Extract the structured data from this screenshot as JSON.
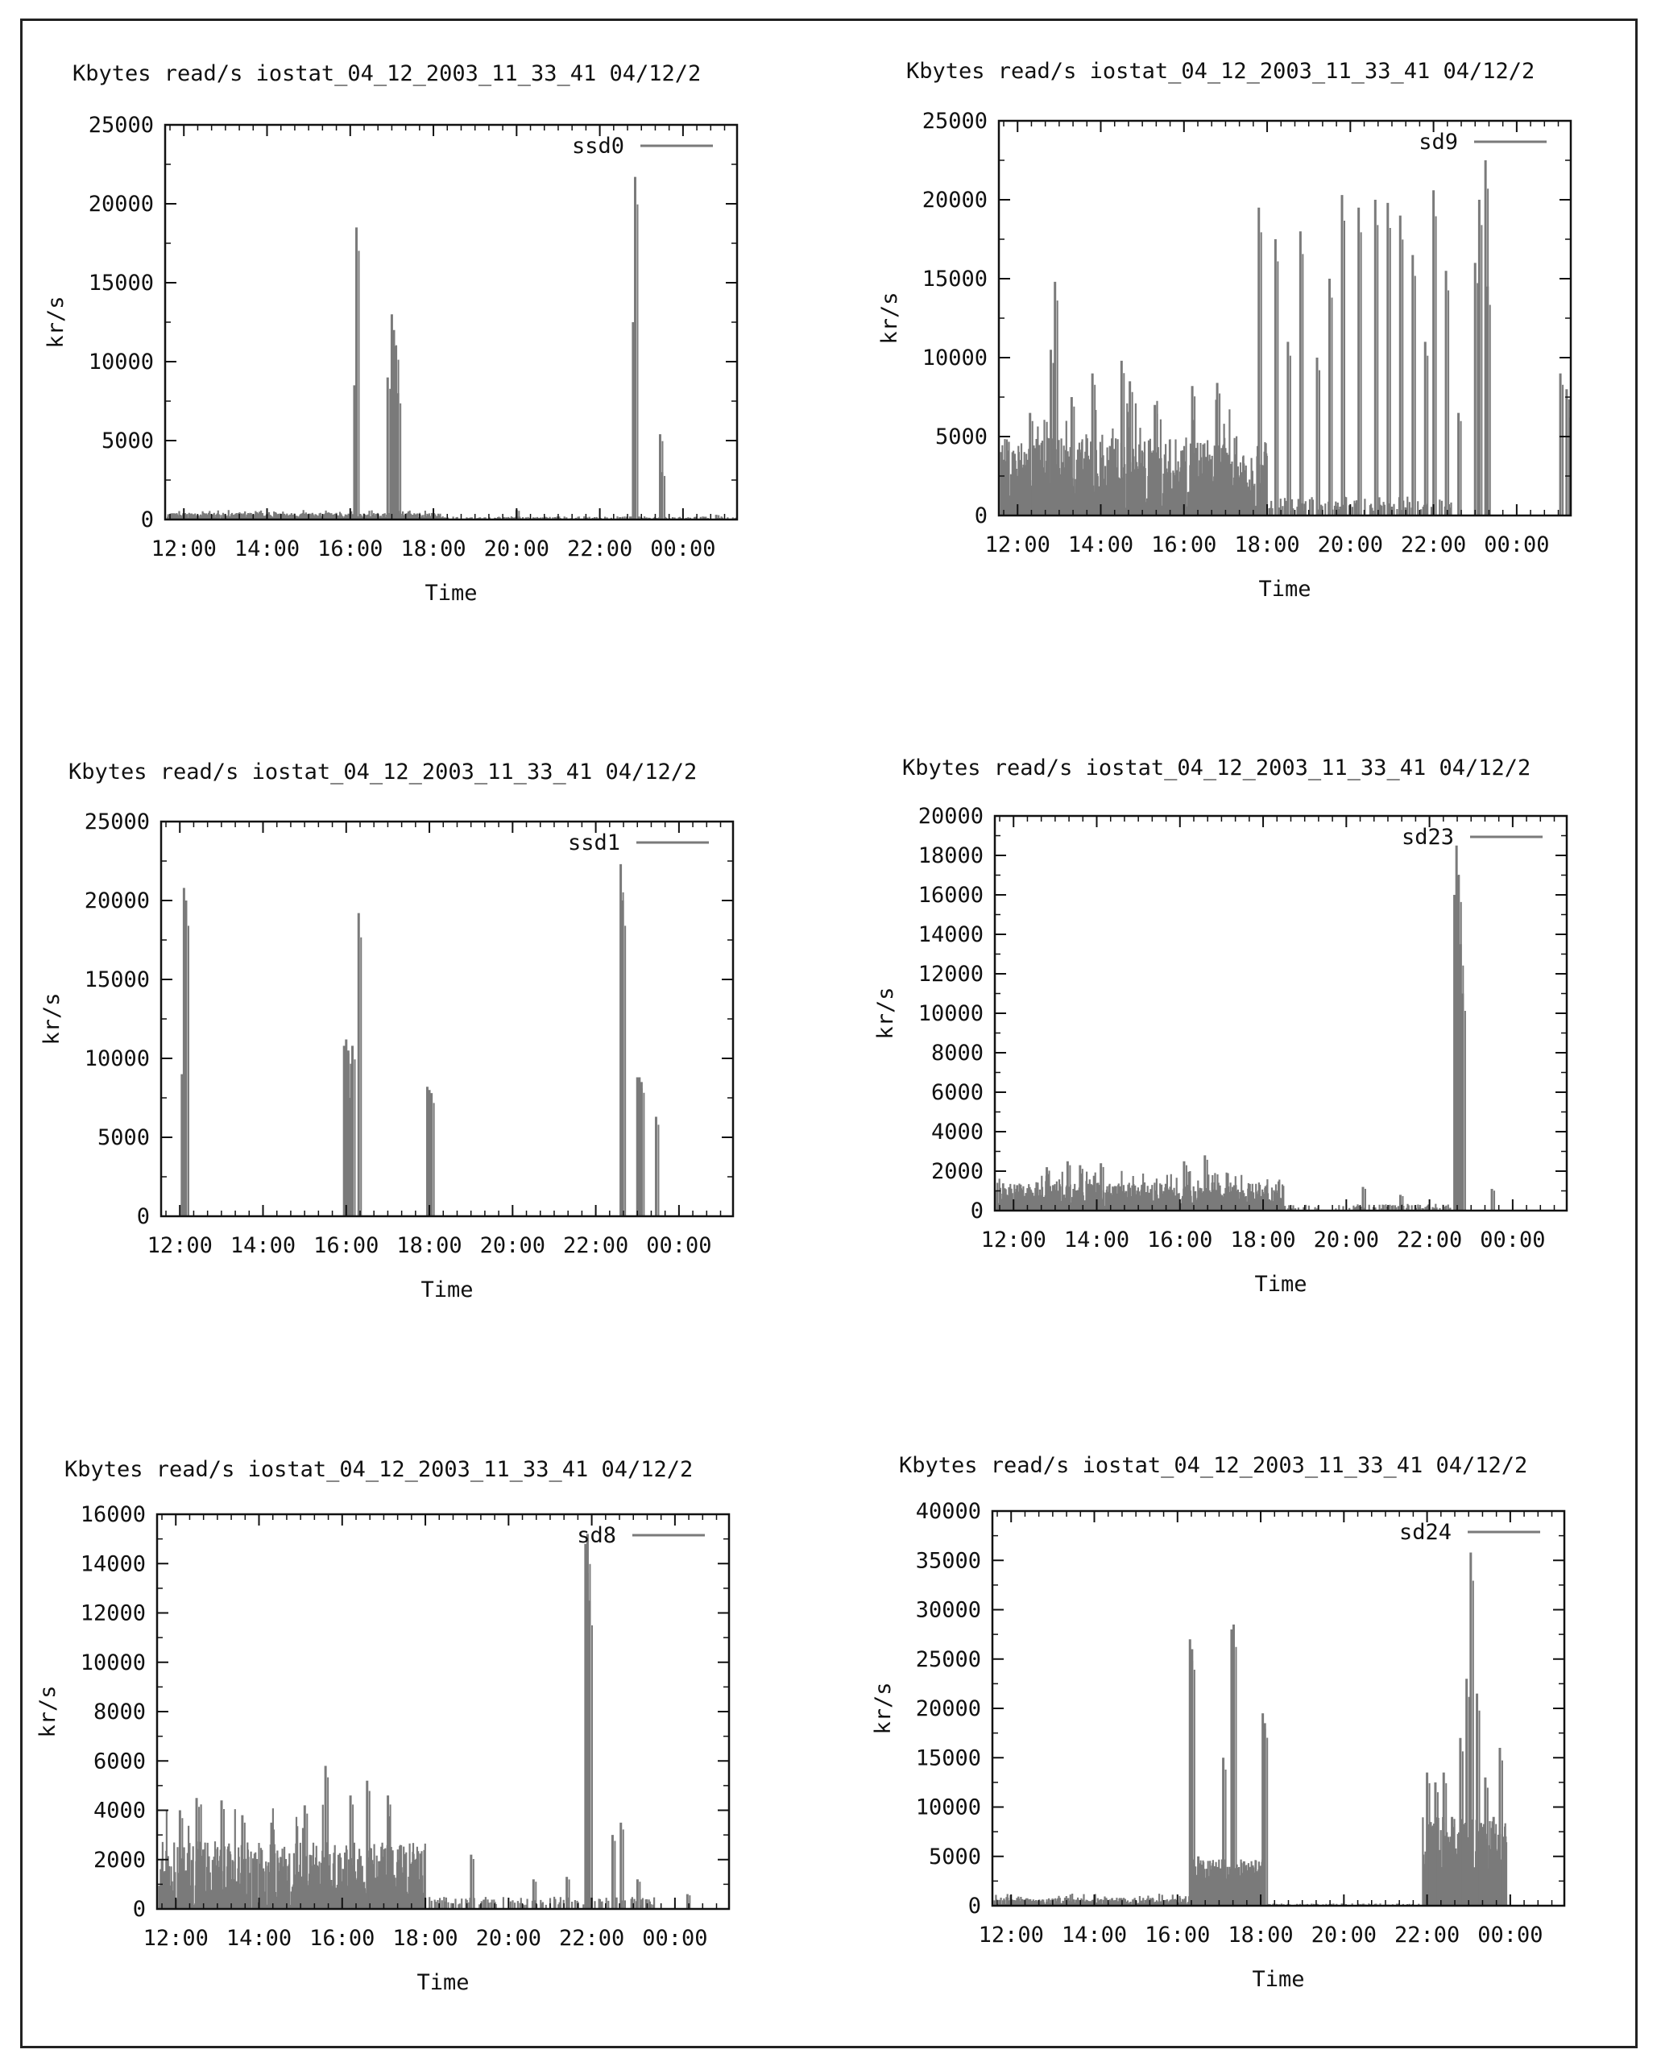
{
  "chart_data": [
    {
      "type": "line",
      "title": "Kbytes read/s   iostat_04_12_2003_11_33_41   04/12/2",
      "xlabel": "Time",
      "ylabel": "kr/s",
      "x_range_hours": [
        11.55,
        25.3
      ],
      "ylim": [
        0,
        25000
      ],
      "yticks": [
        0,
        5000,
        10000,
        15000,
        20000,
        25000
      ],
      "xticks": [
        "12:00",
        "14:00",
        "16:00",
        "18:00",
        "20:00",
        "22:00",
        "00:00"
      ],
      "xtick_hours": [
        12,
        14,
        16,
        18,
        20,
        22,
        24
      ],
      "series": [
        {
          "name": "ssd0",
          "color": "#7a7a7a"
        }
      ],
      "baseline": {
        "level": 250,
        "noise": 250,
        "from": 11.6,
        "to": 18.2
      },
      "sparse": {
        "level": 80,
        "noise": 120,
        "from": 18.2,
        "to": 25.3
      },
      "peaks": [
        [
          16.1,
          8500
        ],
        [
          16.15,
          18500
        ],
        [
          16.9,
          9000
        ],
        [
          17.0,
          13000
        ],
        [
          17.05,
          12000
        ],
        [
          17.1,
          11000
        ],
        [
          17.15,
          8000
        ],
        [
          22.8,
          12500
        ],
        [
          22.85,
          21700
        ],
        [
          23.45,
          5400
        ],
        [
          23.5,
          3000
        ],
        [
          20.0,
          600
        ],
        [
          24.8,
          300
        ]
      ]
    },
    {
      "type": "line",
      "title": "Kbytes read/s   iostat_04_12_2003_11_33_41   04/12/2",
      "xlabel": "Time",
      "ylabel": "kr/s",
      "x_range_hours": [
        11.55,
        25.3
      ],
      "ylim": [
        0,
        25000
      ],
      "yticks": [
        0,
        5000,
        10000,
        15000,
        20000,
        25000
      ],
      "xticks": [
        "12:00",
        "14:00",
        "16:00",
        "18:00",
        "20:00",
        "22:00",
        "00:00"
      ],
      "xtick_hours": [
        12,
        14,
        16,
        18,
        20,
        22,
        24
      ],
      "series": [
        {
          "name": "sd9",
          "color": "#7a7a7a"
        }
      ],
      "baseline": {
        "level": 2500,
        "noise": 3500,
        "from": 11.6,
        "to": 18.0
      },
      "sparse": {
        "level": 300,
        "noise": 900,
        "from": 18.0,
        "to": 22.5
      },
      "peaks": [
        [
          12.3,
          6500
        ],
        [
          12.8,
          10500
        ],
        [
          12.9,
          14800
        ],
        [
          13.3,
          7500
        ],
        [
          13.8,
          9000
        ],
        [
          14.5,
          9800
        ],
        [
          14.7,
          8500
        ],
        [
          15.3,
          7000
        ],
        [
          16.2,
          8200
        ],
        [
          16.8,
          8400
        ],
        [
          17.8,
          19500
        ],
        [
          18.2,
          17500
        ],
        [
          18.5,
          11000
        ],
        [
          18.8,
          18000
        ],
        [
          19.2,
          10000
        ],
        [
          19.5,
          15000
        ],
        [
          19.8,
          20300
        ],
        [
          20.2,
          19500
        ],
        [
          20.6,
          20000
        ],
        [
          20.9,
          19800
        ],
        [
          21.2,
          19000
        ],
        [
          21.5,
          16500
        ],
        [
          21.8,
          11000
        ],
        [
          22.0,
          20600
        ],
        [
          22.3,
          15500
        ],
        [
          22.6,
          6500
        ],
        [
          23.0,
          16000
        ],
        [
          23.1,
          20000
        ],
        [
          23.25,
          22500
        ],
        [
          23.3,
          14500
        ],
        [
          25.05,
          9000
        ],
        [
          25.2,
          8000
        ],
        [
          25.3,
          6200
        ]
      ]
    },
    {
      "type": "line",
      "title": "Kbytes read/s   iostat_04_12_2003_11_33_41   04/12/2",
      "xlabel": "Time",
      "ylabel": "kr/s",
      "x_range_hours": [
        11.55,
        25.3
      ],
      "ylim": [
        0,
        25000
      ],
      "yticks": [
        0,
        5000,
        10000,
        15000,
        20000,
        25000
      ],
      "xticks": [
        "12:00",
        "14:00",
        "16:00",
        "18:00",
        "20:00",
        "22:00",
        "00:00"
      ],
      "xtick_hours": [
        12,
        14,
        16,
        18,
        20,
        22,
        24
      ],
      "series": [
        {
          "name": "ssd1",
          "color": "#7a7a7a"
        }
      ],
      "baseline": {
        "level": 0,
        "noise": 0,
        "from": 11.6,
        "to": 11.7
      },
      "sparse": {
        "level": 0,
        "noise": 0,
        "from": 11.7,
        "to": 11.8
      },
      "peaks": [
        [
          12.05,
          9000
        ],
        [
          12.1,
          20800
        ],
        [
          12.15,
          20000
        ],
        [
          15.95,
          10800
        ],
        [
          16.0,
          11200
        ],
        [
          16.05,
          10500
        ],
        [
          16.1,
          7500
        ],
        [
          16.15,
          10800
        ],
        [
          16.3,
          19200
        ],
        [
          17.95,
          8200
        ],
        [
          18.0,
          8000
        ],
        [
          18.05,
          7800
        ],
        [
          22.6,
          22300
        ],
        [
          22.65,
          20000
        ],
        [
          23.0,
          8800
        ],
        [
          23.05,
          8800
        ],
        [
          23.1,
          8500
        ],
        [
          23.45,
          6300
        ]
      ]
    },
    {
      "type": "line",
      "title": "Kbytes read/s   iostat_04_12_2003_11_33_41   04/12/2",
      "xlabel": "Time",
      "ylabel": "kr/s",
      "x_range_hours": [
        11.55,
        25.3
      ],
      "ylim": [
        0,
        20000
      ],
      "yticks": [
        0,
        2000,
        4000,
        6000,
        8000,
        10000,
        12000,
        14000,
        16000,
        18000,
        20000
      ],
      "xticks": [
        "12:00",
        "14:00",
        "16:00",
        "18:00",
        "20:00",
        "22:00",
        "00:00"
      ],
      "xtick_hours": [
        12,
        14,
        16,
        18,
        20,
        22,
        24
      ],
      "series": [
        {
          "name": "sd23",
          "color": "#7a7a7a"
        }
      ],
      "baseline": {
        "level": 800,
        "noise": 900,
        "from": 11.6,
        "to": 18.5
      },
      "sparse": {
        "level": 100,
        "noise": 250,
        "from": 18.5,
        "to": 22.5
      },
      "peaks": [
        [
          12.8,
          2200
        ],
        [
          13.3,
          2500
        ],
        [
          13.6,
          2300
        ],
        [
          14.1,
          2400
        ],
        [
          16.1,
          2500
        ],
        [
          16.6,
          2800
        ],
        [
          20.4,
          1200
        ],
        [
          21.3,
          800
        ],
        [
          22.6,
          16000
        ],
        [
          22.65,
          18500
        ],
        [
          22.7,
          17000
        ],
        [
          22.75,
          13500
        ],
        [
          22.8,
          11000
        ],
        [
          23.5,
          1100
        ]
      ]
    },
    {
      "type": "line",
      "title": "Kbytes read/s   iostat_04_12_2003_11_33_41   04/12/2",
      "xlabel": "Time",
      "ylabel": "kr/s",
      "x_range_hours": [
        11.55,
        25.3
      ],
      "ylim": [
        0,
        16000
      ],
      "yticks": [
        0,
        2000,
        4000,
        6000,
        8000,
        10000,
        12000,
        14000,
        16000
      ],
      "xticks": [
        "12:00",
        "14:00",
        "16:00",
        "18:00",
        "20:00",
        "22:00",
        "00:00"
      ],
      "xtick_hours": [
        12,
        14,
        16,
        18,
        20,
        22,
        24
      ],
      "series": [
        {
          "name": "sd8",
          "color": "#7a7a7a"
        }
      ],
      "baseline": {
        "level": 1200,
        "noise": 2200,
        "from": 11.6,
        "to": 18.0
      },
      "sparse": {
        "level": 150,
        "noise": 350,
        "from": 18.0,
        "to": 23.5
      },
      "peaks": [
        [
          12.1,
          4000
        ],
        [
          12.5,
          4500
        ],
        [
          13.1,
          4400
        ],
        [
          13.6,
          3800
        ],
        [
          14.3,
          3500
        ],
        [
          15.1,
          4200
        ],
        [
          15.6,
          5800
        ],
        [
          16.2,
          4600
        ],
        [
          16.6,
          5200
        ],
        [
          17.1,
          4600
        ],
        [
          19.1,
          2200
        ],
        [
          20.6,
          1200
        ],
        [
          21.4,
          1300
        ],
        [
          21.85,
          14800
        ],
        [
          21.9,
          15200
        ],
        [
          21.95,
          12500
        ],
        [
          22.5,
          3000
        ],
        [
          22.7,
          3500
        ],
        [
          23.1,
          1200
        ],
        [
          24.3,
          600
        ]
      ]
    },
    {
      "type": "line",
      "title": "Kbytes read/s   iostat_04_12_2003_11_33_41   04/12/2",
      "xlabel": "Time",
      "ylabel": "kr/s",
      "x_range_hours": [
        11.55,
        25.3
      ],
      "ylim": [
        0,
        40000
      ],
      "yticks": [
        0,
        5000,
        10000,
        15000,
        20000,
        25000,
        30000,
        35000,
        40000
      ],
      "xticks": [
        "12:00",
        "14:00",
        "16:00",
        "18:00",
        "20:00",
        "22:00",
        "00:00"
      ],
      "xtick_hours": [
        12,
        14,
        16,
        18,
        20,
        22,
        24
      ],
      "series": [
        {
          "name": "sd24",
          "color": "#7a7a7a"
        }
      ],
      "baseline": {
        "level": 400,
        "noise": 600,
        "from": 11.6,
        "to": 16.3
      },
      "sparse": {
        "level": 80,
        "noise": 150,
        "from": 18.1,
        "to": 21.9
      },
      "peaks": [
        [
          16.3,
          27000
        ],
        [
          16.35,
          26000
        ],
        [
          16.5,
          5000
        ],
        [
          16.9,
          4000
        ],
        [
          17.1,
          15000
        ],
        [
          17.3,
          28000
        ],
        [
          17.35,
          28500
        ],
        [
          17.6,
          4500
        ],
        [
          17.9,
          3500
        ],
        [
          18.05,
          19500
        ],
        [
          18.1,
          18500
        ],
        [
          22.0,
          13500
        ],
        [
          22.2,
          12500
        ],
        [
          22.4,
          13500
        ],
        [
          22.6,
          9000
        ],
        [
          22.8,
          17000
        ],
        [
          22.95,
          23000
        ],
        [
          23.05,
          35800
        ],
        [
          23.2,
          21500
        ],
        [
          23.4,
          13000
        ],
        [
          23.6,
          9000
        ],
        [
          23.75,
          16000
        ],
        [
          23.85,
          7000
        ]
      ],
      "block_ranges": [
        [
          16.35,
          18.1,
          3500,
          2000
        ],
        [
          21.9,
          23.9,
          6000,
          5000
        ]
      ]
    }
  ]
}
